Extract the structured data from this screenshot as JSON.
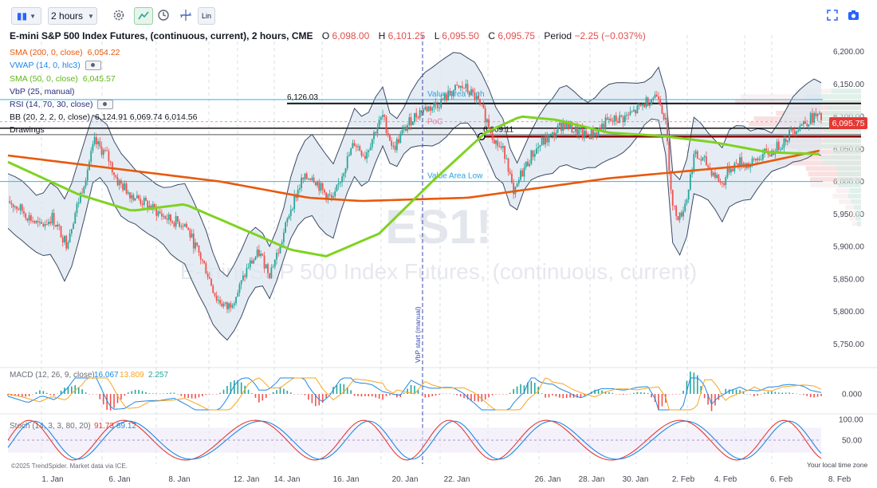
{
  "toolbar": {
    "interval": "2 hours",
    "scale_mode": "Lin"
  },
  "header": {
    "title": "E-mini S&P 500 Index Futures, (continuous, current), 2 hours, CME",
    "open_label": "O",
    "open": "6,098.00",
    "high_label": "H",
    "high": "6,101.25",
    "low_label": "L",
    "low": "6,095.50",
    "close_label": "C",
    "close": "6,095.75",
    "period_label": "Period",
    "period": "−2.25 (−0.037%)"
  },
  "indicators": [
    {
      "name": "SMA (200, 0, close)",
      "values": "6,054.22",
      "color": "#e8590c"
    },
    {
      "name": "VWAP (14, 0, hlc3)",
      "values": "",
      "color": "#1e88e5"
    },
    {
      "name": "SMA (50, 0, close)",
      "values": "6,045.57",
      "color": "#66cc22"
    },
    {
      "name": "VbP (25, manual)",
      "values": "",
      "color": "#2b2f7a"
    },
    {
      "name": "RSI (14, 70, 30, close)",
      "values": "",
      "color": "#2b2f7a"
    },
    {
      "name": "BB (20, 2, 2, 0, close)",
      "values": "6,124.91  6,069.74  6,014.56",
      "color": "#131722"
    },
    {
      "name": "Drawings",
      "values": "",
      "color": "#131722"
    }
  ],
  "watermark": {
    "symbol": "ES1!",
    "description": "E-mini S&P 500 Index Futures, (continuous, current)"
  },
  "annotations": {
    "value_area_high": "Value Area High",
    "value_area_low": "Value Area Low",
    "poc": "PoC",
    "level_upper": "6,126.03",
    "level_lower": "6,069.11",
    "vbp_start": "VbP start (manual)"
  },
  "price_badge": "6,095.75",
  "macd": {
    "name": "MACD (12, 26, 9, close)",
    "v1": "16.067",
    "v2": "13.809",
    "v3": "2.257",
    "axis_label": "0.000"
  },
  "stoch": {
    "name": "Stoch (14, 3, 3, 80, 20)",
    "v1": "91.73",
    "v2": "89.12",
    "axis_labels": [
      "100.00",
      "50.00"
    ]
  },
  "footer_note": "©2025 TrendSpider. Market data via ICE.",
  "timezone_note": "Your local time zone",
  "colors": {
    "up": "#26a69a",
    "down": "#ef5350",
    "sma200": "#e8590c",
    "sma50": "#7ed321",
    "bb": "#3a4a66",
    "bb_fill": "#dde6ef",
    "value_area": "#29b6f6",
    "vbp": "#f4c0c0",
    "accent": "#26a69a"
  },
  "chart_data": {
    "type": "candlestick",
    "title": "E-mini S&P 500 Index Futures, (continuous, current), 2 hours, CME",
    "y_ticks": [
      "6,200.00",
      "6,150.00",
      "6,100.00",
      "6,050.00",
      "6,000.00",
      "5,950.00",
      "5,900.00",
      "5,850.00",
      "5,800.00",
      "5,750.00"
    ],
    "ylim": [
      5715,
      6235
    ],
    "x_ticks": [
      "1. Jan",
      "6. Jan",
      "8. Jan",
      "12. Jan",
      "14. Jan",
      "16. Jan",
      "20. Jan",
      "22. Jan",
      "26. Jan",
      "28. Jan",
      "30. Jan",
      "2. Feb",
      "4. Feb",
      "6. Feb",
      "8. Feb"
    ],
    "close_path": [
      [
        0,
        5970
      ],
      [
        8,
        5955
      ],
      [
        18,
        5930
      ],
      [
        25,
        5945
      ],
      [
        33,
        5905
      ],
      [
        41,
        5980
      ],
      [
        49,
        6060
      ],
      [
        56,
        6040
      ],
      [
        62,
        6000
      ],
      [
        70,
        5980
      ],
      [
        78,
        5965
      ],
      [
        86,
        5950
      ],
      [
        92,
        5940
      ],
      [
        100,
        5935
      ],
      [
        106,
        5900
      ],
      [
        112,
        5865
      ],
      [
        118,
        5820
      ],
      [
        124,
        5805
      ],
      [
        130,
        5830
      ],
      [
        136,
        5870
      ],
      [
        142,
        5890
      ],
      [
        148,
        5860
      ],
      [
        154,
        5900
      ],
      [
        160,
        5960
      ],
      [
        166,
        6000
      ],
      [
        172,
        6010
      ],
      [
        178,
        5985
      ],
      [
        184,
        5970
      ],
      [
        190,
        6020
      ],
      [
        196,
        6060
      ],
      [
        202,
        6040
      ],
      [
        208,
        6080
      ],
      [
        212,
        6100
      ],
      [
        218,
        6050
      ],
      [
        222,
        6070
      ],
      [
        228,
        6095
      ],
      [
        234,
        6110
      ],
      [
        240,
        6115
      ],
      [
        246,
        6125
      ],
      [
        252,
        6140
      ],
      [
        258,
        6145
      ],
      [
        264,
        6130
      ],
      [
        270,
        6100
      ],
      [
        276,
        6060
      ],
      [
        282,
        6040
      ],
      [
        286,
        5975
      ],
      [
        290,
        6010
      ],
      [
        296,
        6040
      ],
      [
        302,
        6060
      ],
      [
        308,
        6070
      ],
      [
        314,
        6090
      ],
      [
        320,
        6080
      ],
      [
        326,
        6070
      ],
      [
        332,
        6075
      ],
      [
        338,
        6090
      ],
      [
        344,
        6095
      ],
      [
        350,
        6100
      ],
      [
        356,
        6110
      ],
      [
        362,
        6125
      ],
      [
        368,
        6135
      ],
      [
        372,
        6090
      ],
      [
        376,
        5960
      ],
      [
        380,
        5945
      ],
      [
        384,
        5975
      ],
      [
        388,
        6040
      ],
      [
        394,
        6030
      ],
      [
        400,
        6010
      ],
      [
        404,
        5995
      ],
      [
        408,
        6020
      ],
      [
        414,
        6030
      ],
      [
        420,
        6025
      ],
      [
        426,
        6040
      ],
      [
        432,
        6045
      ],
      [
        438,
        6060
      ],
      [
        444,
        6080
      ],
      [
        450,
        6090
      ],
      [
        456,
        6100
      ],
      [
        460,
        6096
      ]
    ],
    "sma200": [
      [
        0,
        6040
      ],
      [
        60,
        6020
      ],
      [
        120,
        6000
      ],
      [
        170,
        5975
      ],
      [
        200,
        5970
      ],
      [
        260,
        5975
      ],
      [
        300,
        5990
      ],
      [
        340,
        6005
      ],
      [
        380,
        6015
      ],
      [
        420,
        6025
      ],
      [
        460,
        6048
      ]
    ],
    "sma50": [
      [
        0,
        6030
      ],
      [
        40,
        5980
      ],
      [
        70,
        5955
      ],
      [
        100,
        5965
      ],
      [
        130,
        5930
      ],
      [
        160,
        5895
      ],
      [
        180,
        5885
      ],
      [
        210,
        5920
      ],
      [
        240,
        6000
      ],
      [
        270,
        6075
      ],
      [
        290,
        6100
      ],
      [
        310,
        6095
      ],
      [
        340,
        6075
      ],
      [
        370,
        6070
      ],
      [
        400,
        6060
      ],
      [
        430,
        6045
      ],
      [
        460,
        6042
      ]
    ],
    "value_area_high": 6126.03,
    "value_area_low": 6000,
    "poc": 6092,
    "level_lower": 6069.11,
    "macd_range": [
      -60,
      45
    ],
    "stoch_range": [
      0,
      100
    ]
  }
}
